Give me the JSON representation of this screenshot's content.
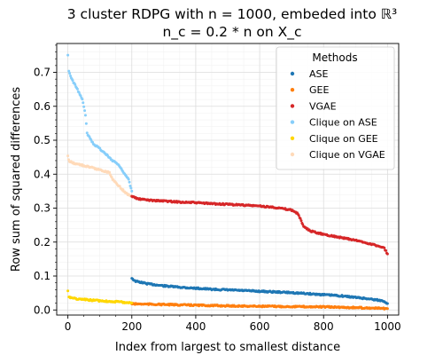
{
  "chart_data": {
    "type": "scatter",
    "title_line1": "3 cluster RDPG with n = 1000, embeded into ℝ³",
    "title_line2": "n_c = 0.2 * n on X_c",
    "xlabel": "Index from largest to smallest distance",
    "ylabel": "Row sum of squared differences",
    "xlim": [
      -35,
      1035
    ],
    "ylim": [
      -0.015,
      0.785
    ],
    "xticks": [
      0,
      200,
      400,
      600,
      800,
      1000
    ],
    "yticks": [
      0.0,
      0.1,
      0.2,
      0.3,
      0.4,
      0.5,
      0.6,
      0.7
    ],
    "grid": true,
    "legend": {
      "title": "Methods",
      "placement": "top-right",
      "entries": [
        "ASE",
        "GEE",
        "VGAE",
        "Clique on ASE",
        "Clique on GEE",
        "Clique on VGAE"
      ]
    },
    "series": [
      {
        "name": "ASE",
        "color": "#1f77b4",
        "x": [
          200,
          210,
          250,
          300,
          350,
          400,
          450,
          500,
          550,
          600,
          650,
          700,
          750,
          800,
          850,
          900,
          950,
          990,
          1000
        ],
        "y": [
          0.094,
          0.085,
          0.077,
          0.071,
          0.067,
          0.064,
          0.061,
          0.059,
          0.057,
          0.055,
          0.053,
          0.051,
          0.048,
          0.045,
          0.042,
          0.037,
          0.032,
          0.026,
          0.019
        ]
      },
      {
        "name": "GEE",
        "color": "#ff7f0e",
        "x": [
          200,
          250,
          300,
          400,
          500,
          600,
          700,
          800,
          900,
          1000
        ],
        "y": [
          0.018,
          0.017,
          0.016,
          0.014,
          0.012,
          0.011,
          0.01,
          0.009,
          0.007,
          0.004
        ]
      },
      {
        "name": "VGAE",
        "color": "#d62728",
        "x": [
          200,
          220,
          260,
          300,
          350,
          400,
          450,
          500,
          550,
          600,
          650,
          700,
          710,
          720,
          730,
          740,
          760,
          800,
          850,
          900,
          950,
          990,
          1000
        ],
        "y": [
          0.335,
          0.327,
          0.323,
          0.321,
          0.318,
          0.316,
          0.313,
          0.311,
          0.309,
          0.306,
          0.302,
          0.294,
          0.29,
          0.283,
          0.262,
          0.243,
          0.232,
          0.223,
          0.214,
          0.205,
          0.194,
          0.182,
          0.165
        ]
      },
      {
        "name": "Clique on ASE",
        "color": "#87cefa",
        "x": [
          0,
          3,
          8,
          15,
          25,
          35,
          45,
          50,
          55,
          60,
          70,
          80,
          100,
          120,
          140,
          150,
          160,
          170,
          180,
          190,
          195,
          200
        ],
        "y": [
          0.75,
          0.705,
          0.688,
          0.675,
          0.658,
          0.64,
          0.62,
          0.598,
          0.575,
          0.52,
          0.505,
          0.49,
          0.475,
          0.458,
          0.44,
          0.435,
          0.425,
          0.412,
          0.398,
          0.385,
          0.365,
          0.35
        ]
      },
      {
        "name": "Clique on GEE",
        "color": "#ffd700",
        "x": [
          0,
          3,
          10,
          30,
          60,
          100,
          140,
          170,
          200
        ],
        "y": [
          0.055,
          0.04,
          0.036,
          0.032,
          0.03,
          0.027,
          0.025,
          0.023,
          0.021
        ]
      },
      {
        "name": "Clique on VGAE",
        "color": "#ffdab9",
        "x": [
          0,
          5,
          20,
          50,
          80,
          110,
          130,
          140,
          160,
          180,
          200
        ],
        "y": [
          0.452,
          0.438,
          0.432,
          0.425,
          0.418,
          0.41,
          0.405,
          0.385,
          0.365,
          0.345,
          0.333
        ]
      }
    ]
  }
}
